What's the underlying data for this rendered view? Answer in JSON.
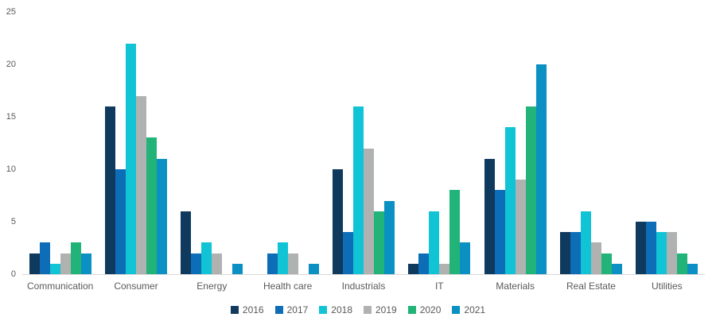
{
  "chart_data": {
    "type": "bar",
    "title": "",
    "xlabel": "",
    "ylabel": "",
    "categories": [
      "Communication",
      "Consumer",
      "Energy",
      "Health care",
      "Industrials",
      "IT",
      "Materials",
      "Real Estate",
      "Utilities"
    ],
    "series": [
      {
        "name": "2016",
        "color": "#10395e",
        "values": [
          2,
          16,
          6,
          0,
          10,
          1,
          11,
          4,
          5
        ]
      },
      {
        "name": "2017",
        "color": "#0d6db6",
        "values": [
          3,
          10,
          2,
          2,
          4,
          2,
          8,
          4,
          5
        ]
      },
      {
        "name": "2018",
        "color": "#10c3d5",
        "values": [
          1,
          22,
          3,
          3,
          16,
          6,
          14,
          6,
          4
        ]
      },
      {
        "name": "2019",
        "color": "#b0b2b2",
        "values": [
          2,
          17,
          2,
          2,
          12,
          1,
          9,
          3,
          4
        ]
      },
      {
        "name": "2020",
        "color": "#21b377",
        "values": [
          3,
          13,
          0,
          0,
          6,
          8,
          16,
          2,
          2
        ]
      },
      {
        "name": "2021",
        "color": "#0a90c2",
        "values": [
          2,
          11,
          1,
          1,
          7,
          3,
          20,
          1,
          1
        ]
      }
    ],
    "ylim": [
      0,
      25
    ],
    "yticks": [
      0,
      5,
      10,
      15,
      20,
      25
    ],
    "grid": false,
    "legend_position": "bottom",
    "text_color": "#595959",
    "axis_line_color": "#d7d7d7"
  }
}
